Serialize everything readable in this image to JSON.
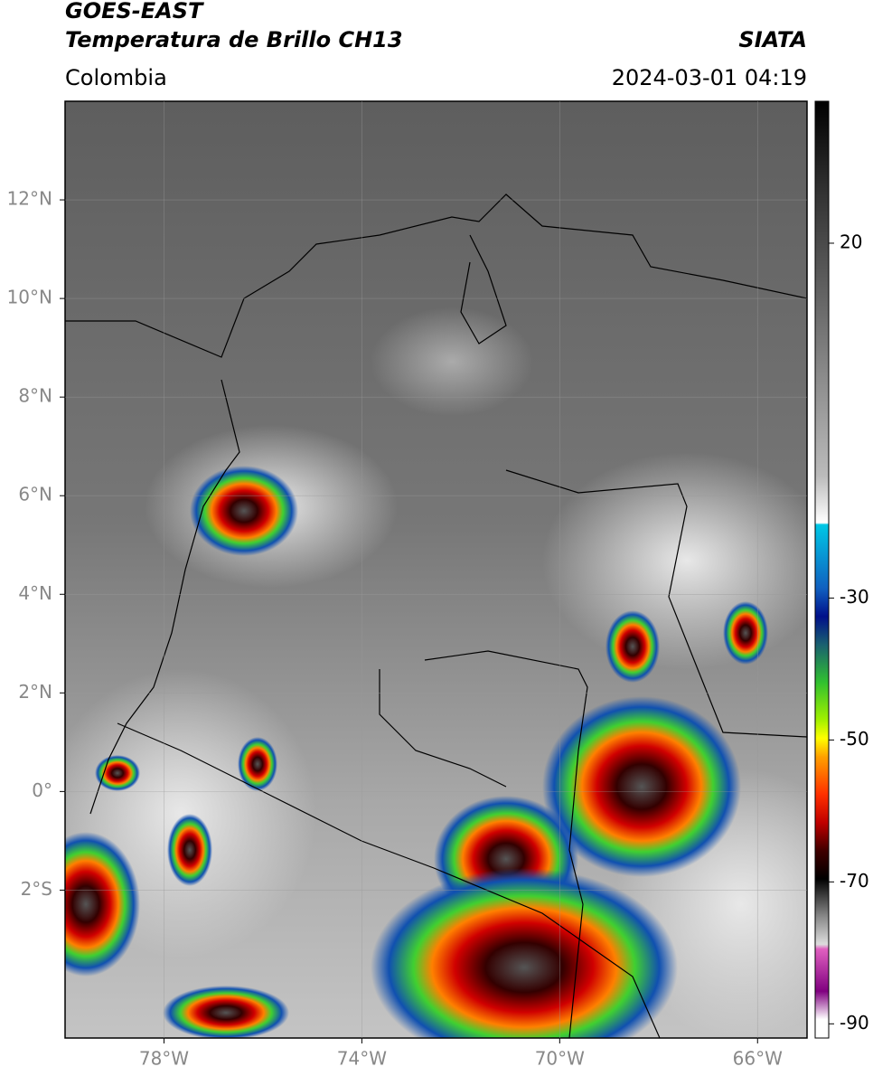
{
  "header": {
    "title": "GOES-EAST",
    "subtitle": "Temperatura de Brillo CH13",
    "source": "SIATA",
    "region": "Colombia",
    "timestamp": "2024-03-01 04:19"
  },
  "map": {
    "xlim": [
      -80,
      -65
    ],
    "ylim": [
      -5,
      14
    ],
    "xticks": [
      {
        "value": -78,
        "label": "78°W"
      },
      {
        "value": -74,
        "label": "74°W"
      },
      {
        "value": -70,
        "label": "70°W"
      },
      {
        "value": -66,
        "label": "66°W"
      }
    ],
    "yticks": [
      {
        "value": 12,
        "label": "12°N"
      },
      {
        "value": 10,
        "label": "10°N"
      },
      {
        "value": 8,
        "label": "8°N"
      },
      {
        "value": 6,
        "label": "6°N"
      },
      {
        "value": 4,
        "label": "4°N"
      },
      {
        "value": 2,
        "label": "2°N"
      },
      {
        "value": 0,
        "label": "0°"
      },
      {
        "value": -2,
        "label": "2°S"
      }
    ],
    "grid": true
  },
  "colorbar": {
    "lim": [
      -92,
      40
    ],
    "ticks": [
      20,
      -30,
      -50,
      -70,
      -90
    ]
  }
}
